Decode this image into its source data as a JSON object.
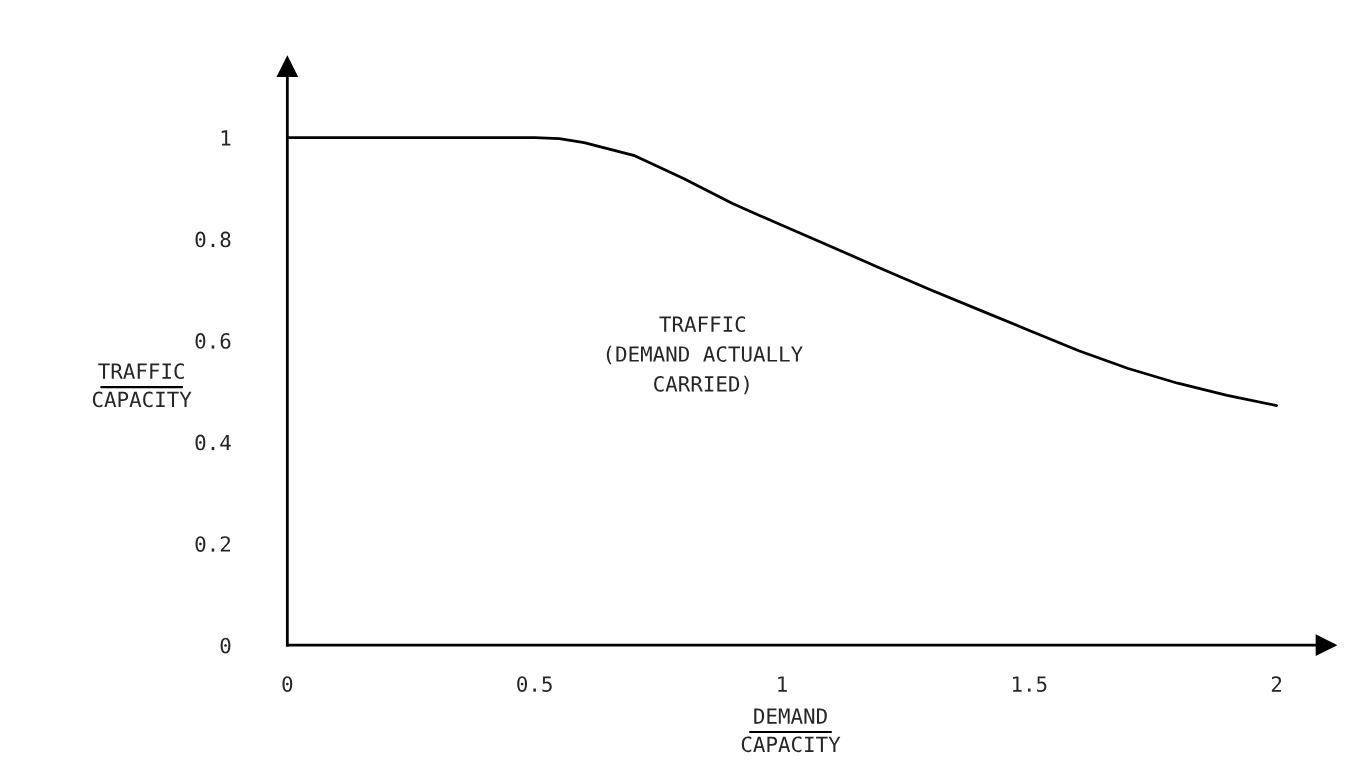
{
  "chart_data": {
    "type": "line",
    "xlabel": "DEMAND\nCAPACITY",
    "ylabel": "TRAFFIC\nCAPACITY",
    "annotations": [
      "TRAFFIC\n(DEMAND ACTUALLY\nCARRIED)"
    ],
    "x": [
      0,
      0.1,
      0.2,
      0.3,
      0.4,
      0.5,
      0.55,
      0.6,
      0.7,
      0.8,
      0.9,
      1.0,
      1.1,
      1.2,
      1.3,
      1.4,
      1.5,
      1.6,
      1.7,
      1.8,
      1.9,
      2.0
    ],
    "series": [
      {
        "color": "#000000",
        "values": [
          1,
          1,
          1,
          1,
          1,
          1,
          0.998,
          0.99,
          0.965,
          0.92,
          0.87,
          0.827,
          0.785,
          0.742,
          0.7,
          0.66,
          0.62,
          0.58,
          0.545,
          0.516,
          0.492,
          0.472
        ]
      }
    ],
    "xlim": [
      0,
      2.1
    ],
    "ylim": [
      0,
      1.14
    ],
    "xticks": [
      0,
      0.5,
      1,
      1.5,
      2
    ],
    "yticks": [
      0,
      0.2,
      0.4,
      0.6,
      0.8,
      1
    ],
    "grid": false,
    "legend": false,
    "marker": "none",
    "line_style": "solid"
  }
}
